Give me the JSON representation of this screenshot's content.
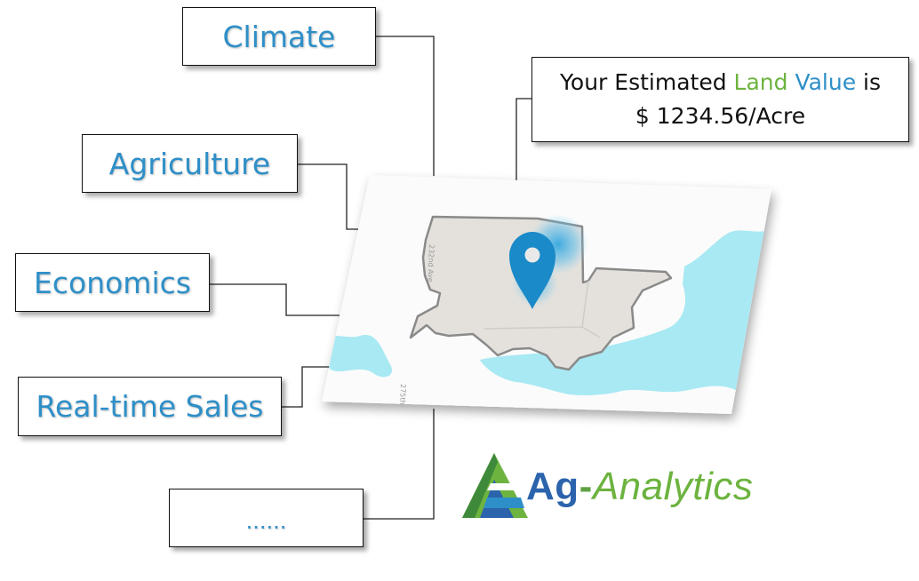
{
  "factors": [
    {
      "label": "Climate"
    },
    {
      "label": "Agriculture"
    },
    {
      "label": "Economics"
    },
    {
      "label": "Real-time Sales"
    },
    {
      "label": "......"
    }
  ],
  "estimate": {
    "prefix": "Your Estimated ",
    "land": "Land",
    "value": "Value",
    "suffix": " is",
    "amount": "$ 1234.56/Acre"
  },
  "map": {
    "road_label_1": "232nd Ave",
    "road_label_2": "275th",
    "pin_icon": "map-pin-icon"
  },
  "logo": {
    "ag": "Ag",
    "dash": "-",
    "analytics": "Analytics"
  },
  "colors": {
    "text_blue": "#2e8fc8",
    "text_green": "#6db33f",
    "water": "#a8e9f3",
    "parcel": "#e4e1dc",
    "pin": "#1a8ac8"
  }
}
